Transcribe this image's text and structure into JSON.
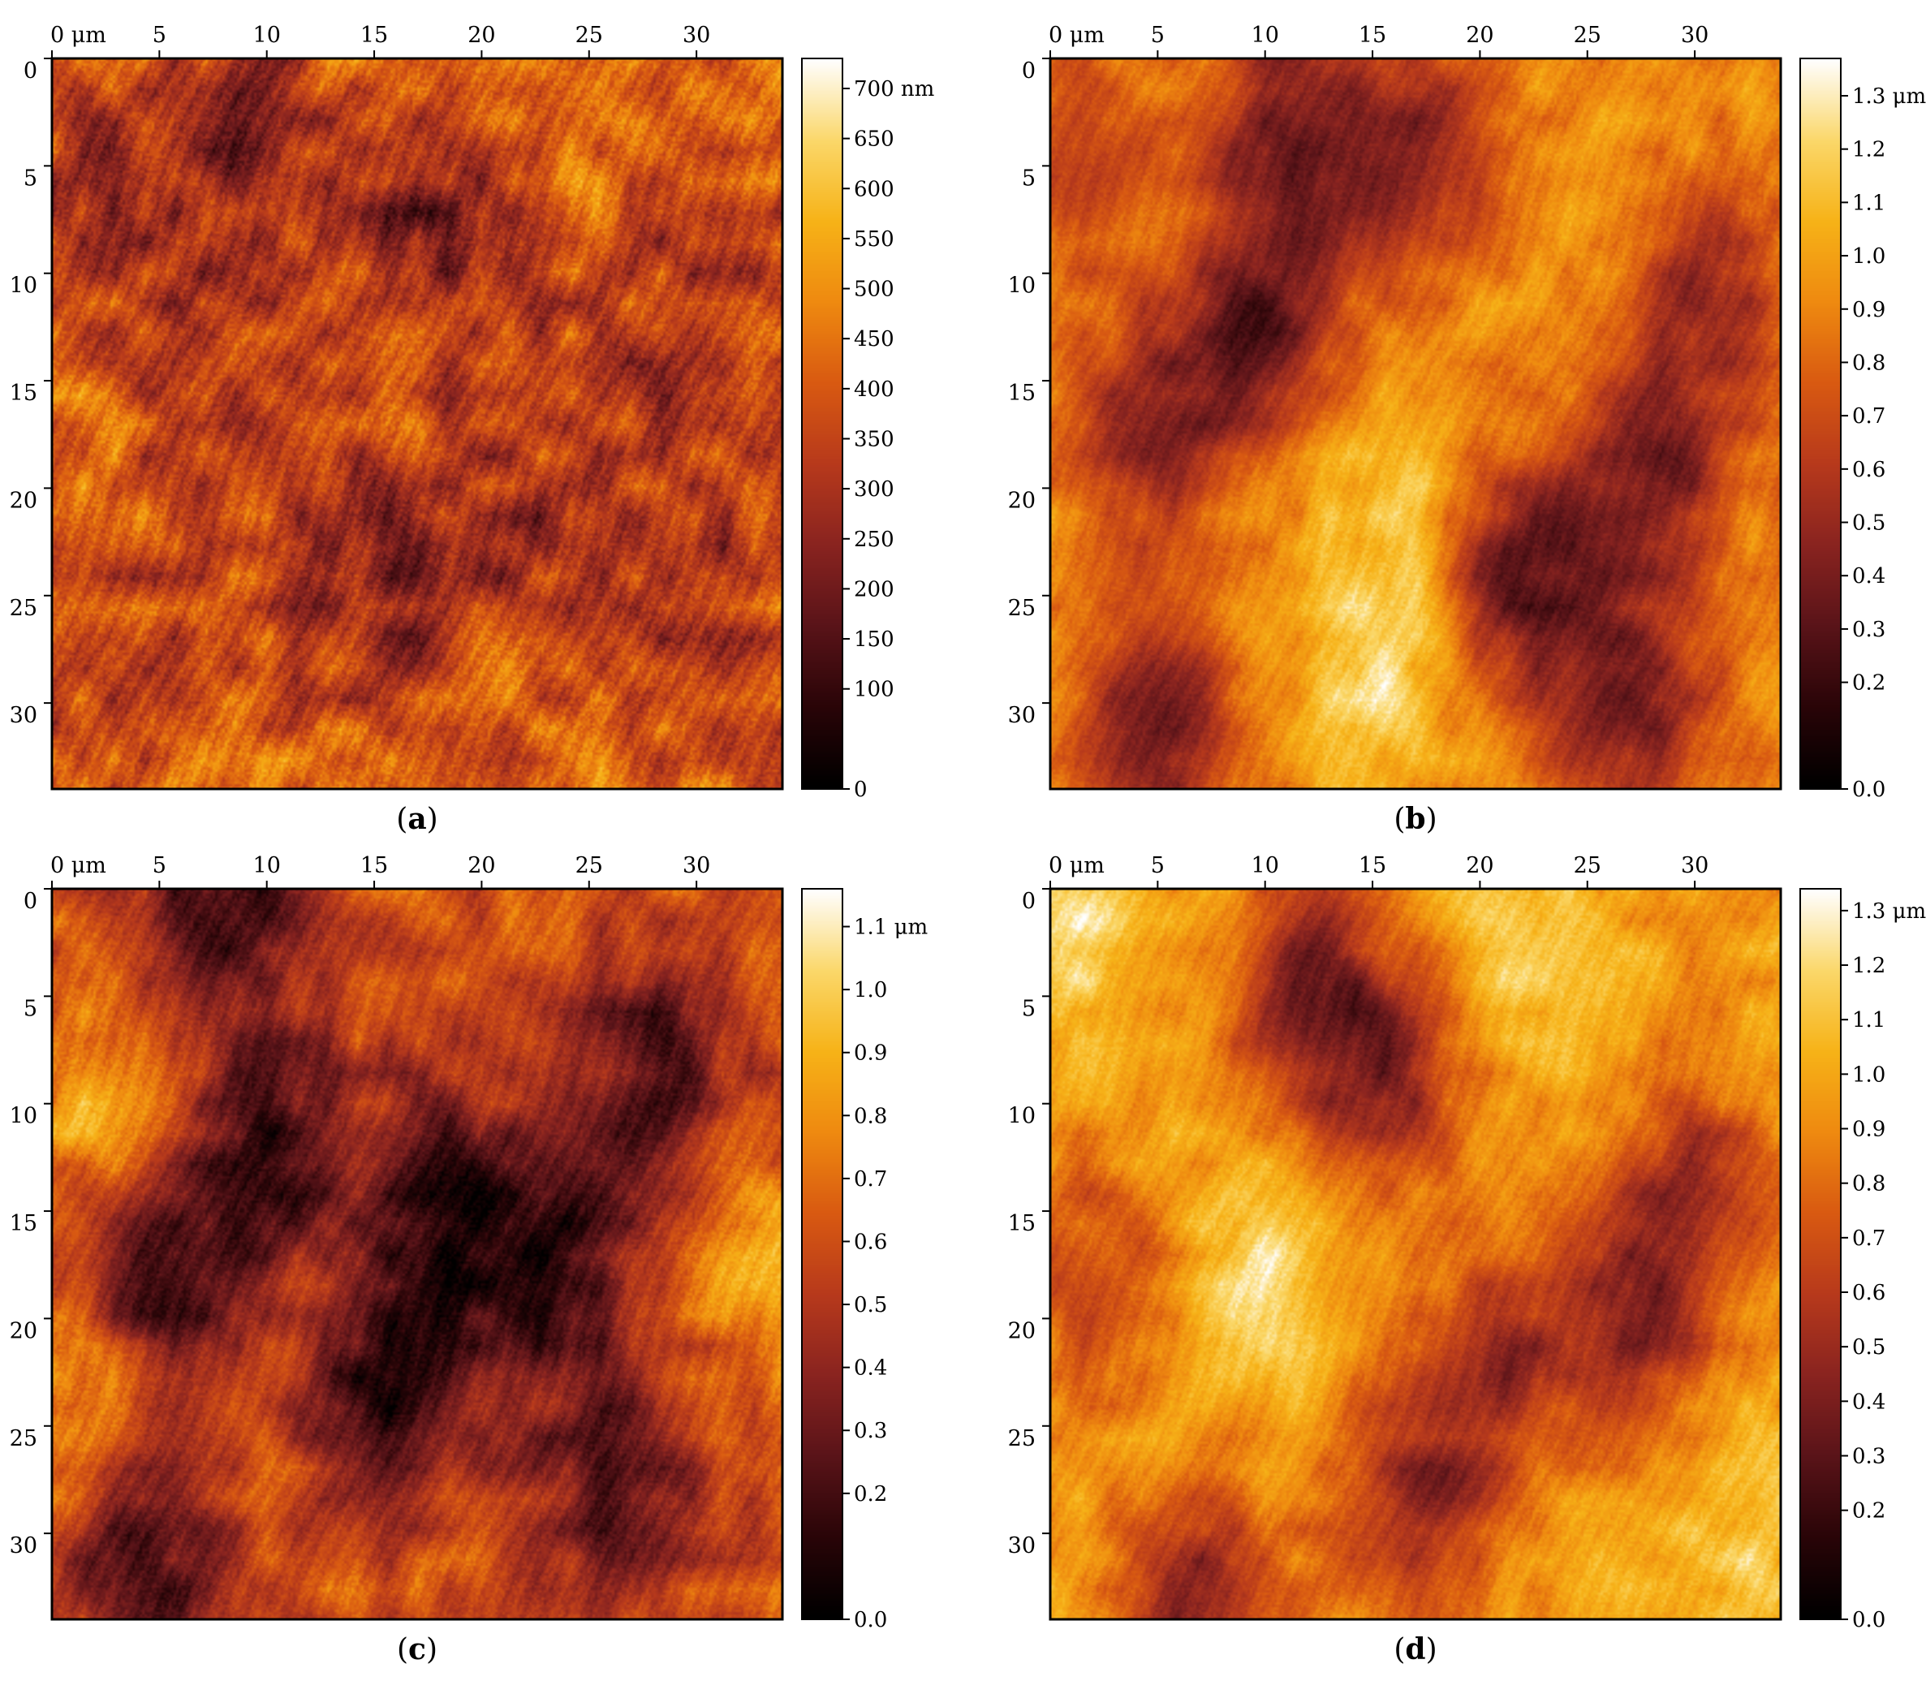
{
  "colors": {
    "colormap": [
      "#000000",
      "#2a0508",
      "#5a1419",
      "#8a2420",
      "#b83a1c",
      "#d95a12",
      "#ef8a10",
      "#f7b318",
      "#fbd86a",
      "#ffffff"
    ],
    "frame": "#000000"
  },
  "panels": [
    {
      "id": "a",
      "caption": {
        "open": "(",
        "letter": "a",
        "close": ")"
      },
      "x_axis": {
        "ticks": [
          "0 μm",
          "5",
          "10",
          "15",
          "20",
          "25",
          "30"
        ],
        "values": [
          0,
          5,
          10,
          15,
          20,
          25,
          30
        ],
        "range": [
          0,
          34
        ]
      },
      "y_axis": {
        "ticks": [
          "0",
          "5",
          "10",
          "15",
          "20",
          "25",
          "30"
        ],
        "values": [
          0,
          5,
          10,
          15,
          20,
          25,
          30
        ],
        "range": [
          0,
          34
        ]
      },
      "colorbar": {
        "labels": [
          "700 nm",
          "650",
          "600",
          "550",
          "500",
          "450",
          "400",
          "350",
          "300",
          "250",
          "200",
          "150",
          "100",
          "0"
        ],
        "values": [
          700,
          650,
          600,
          550,
          500,
          450,
          400,
          350,
          300,
          250,
          200,
          150,
          100,
          0
        ],
        "range": [
          0,
          730
        ]
      },
      "texture": {
        "base_level": 0.58,
        "variation": 0.22,
        "seed": 7,
        "spots": [
          {
            "x": 3,
            "y": 6,
            "d": -1
          },
          {
            "x": 9,
            "y": 4,
            "d": -1
          },
          {
            "x": 17,
            "y": 7,
            "d": -1
          },
          {
            "x": 13,
            "y": 21,
            "d": -0.8
          },
          {
            "x": 22,
            "y": 22,
            "d": -0.8
          },
          {
            "x": 16,
            "y": 26,
            "d": -1
          },
          {
            "x": 30,
            "y": 25,
            "d": -1
          },
          {
            "x": 28,
            "y": 15,
            "d": -0.7
          },
          {
            "x": 7,
            "y": 14,
            "d": -0.7
          },
          {
            "x": 4,
            "y": 28,
            "d": -0.6
          },
          {
            "x": 20,
            "y": 11,
            "d": -0.6
          },
          {
            "x": 31,
            "y": 8,
            "d": -0.6
          }
        ]
      }
    },
    {
      "id": "b",
      "caption": {
        "open": "(",
        "letter": "b",
        "close": ")"
      },
      "x_axis": {
        "ticks": [
          "0 μm",
          "5",
          "10",
          "15",
          "20",
          "25",
          "30"
        ],
        "values": [
          0,
          5,
          10,
          15,
          20,
          25,
          30
        ],
        "range": [
          0,
          34
        ]
      },
      "y_axis": {
        "ticks": [
          "0",
          "5",
          "10",
          "15",
          "20",
          "25",
          "30"
        ],
        "values": [
          0,
          5,
          10,
          15,
          20,
          25,
          30
        ],
        "range": [
          0,
          34
        ]
      },
      "colorbar": {
        "labels": [
          "1.3 μm",
          "1.2",
          "1.1",
          "1.0",
          "0.9",
          "0.8",
          "0.7",
          "0.6",
          "0.5",
          "0.4",
          "0.3",
          "0.2",
          "0.0"
        ],
        "values": [
          1.3,
          1.2,
          1.1,
          1.0,
          0.9,
          0.8,
          0.7,
          0.6,
          0.5,
          0.4,
          0.3,
          0.2,
          0.0
        ],
        "range": [
          0,
          1.37
        ]
      },
      "texture": {
        "base_level": 0.68,
        "variation": 0.12,
        "seed": 19,
        "spots": [
          {
            "x": 11,
            "y": 3,
            "d": -3.2
          },
          {
            "x": 17,
            "y": 4,
            "d": -2.8
          },
          {
            "x": 10,
            "y": 12,
            "d": -3.4
          },
          {
            "x": 5,
            "y": 17,
            "d": -3.0
          },
          {
            "x": 22,
            "y": 24,
            "d": -3.6
          },
          {
            "x": 28,
            "y": 19,
            "d": -3.2
          },
          {
            "x": 27,
            "y": 30,
            "d": -3.2
          },
          {
            "x": 5,
            "y": 31,
            "d": -3.4
          },
          {
            "x": 31,
            "y": 11,
            "d": -2.6
          },
          {
            "x": 15,
            "y": 28,
            "d": 1.8
          },
          {
            "x": 16,
            "y": 20,
            "d": 1.2
          },
          {
            "x": 1,
            "y": 5,
            "d": -2.0
          }
        ]
      }
    },
    {
      "id": "c",
      "caption": {
        "open": "(",
        "letter": "c",
        "close": ")"
      },
      "x_axis": {
        "ticks": [
          "0 μm",
          "5",
          "10",
          "15",
          "20",
          "25",
          "30"
        ],
        "values": [
          0,
          5,
          10,
          15,
          20,
          25,
          30
        ],
        "range": [
          0,
          34
        ]
      },
      "y_axis": {
        "ticks": [
          "0",
          "5",
          "10",
          "15",
          "20",
          "25",
          "30"
        ],
        "values": [
          0,
          5,
          10,
          15,
          20,
          25,
          30
        ],
        "range": [
          0,
          34
        ]
      },
      "colorbar": {
        "labels": [
          "1.1 μm",
          "1.0",
          "0.9",
          "0.8",
          "0.7",
          "0.6",
          "0.5",
          "0.4",
          "0.3",
          "0.2",
          "0.0"
        ],
        "values": [
          1.1,
          1.0,
          0.9,
          0.8,
          0.7,
          0.6,
          0.5,
          0.4,
          0.3,
          0.2,
          0.0
        ],
        "range": [
          0,
          1.16
        ]
      },
      "texture": {
        "base_level": 0.52,
        "variation": 0.16,
        "seed": 31,
        "spots": [
          {
            "x": 5,
            "y": 18,
            "d": -2.4
          },
          {
            "x": 10,
            "y": 12,
            "d": -2.2
          },
          {
            "x": 16,
            "y": 23,
            "d": -2.8
          },
          {
            "x": 23,
            "y": 17,
            "d": -2.6
          },
          {
            "x": 18,
            "y": 14,
            "d": -2.2
          },
          {
            "x": 4,
            "y": 31,
            "d": -2.4
          },
          {
            "x": 28,
            "y": 8,
            "d": -2.0
          },
          {
            "x": 8,
            "y": 1,
            "d": -2.4
          },
          {
            "x": 26,
            "y": 27,
            "d": -2.0
          },
          {
            "x": 2,
            "y": 10,
            "d": 1.4
          },
          {
            "x": 2,
            "y": 25,
            "d": 1.4
          },
          {
            "x": 33,
            "y": 18,
            "d": 1.2
          }
        ]
      }
    },
    {
      "id": "d",
      "caption": {
        "open": "(",
        "letter": "d",
        "close": ")"
      },
      "x_axis": {
        "ticks": [
          "0 μm",
          "5",
          "10",
          "15",
          "20",
          "25",
          "30"
        ],
        "values": [
          0,
          5,
          10,
          15,
          20,
          25,
          30
        ],
        "range": [
          0,
          34
        ]
      },
      "y_axis": {
        "ticks": [
          "0",
          "5",
          "10",
          "15",
          "20",
          "25",
          "30"
        ],
        "values": [
          0,
          5,
          10,
          15,
          20,
          25,
          30
        ],
        "range": [
          0,
          34
        ]
      },
      "colorbar": {
        "labels": [
          "1.3 μm",
          "1.2",
          "1.1",
          "1.0",
          "0.9",
          "0.8",
          "0.7",
          "0.6",
          "0.5",
          "0.4",
          "0.3",
          "0.2",
          "0.0"
        ],
        "values": [
          1.3,
          1.2,
          1.1,
          1.0,
          0.9,
          0.8,
          0.7,
          0.6,
          0.5,
          0.4,
          0.3,
          0.2,
          0.0
        ],
        "range": [
          0,
          1.34
        ]
      },
      "texture": {
        "base_level": 0.72,
        "variation": 0.12,
        "seed": 43,
        "spots": [
          {
            "x": 12,
            "y": 5,
            "d": -3.8
          },
          {
            "x": 16,
            "y": 9,
            "d": -2.6
          },
          {
            "x": 27,
            "y": 20,
            "d": -3.0
          },
          {
            "x": 30,
            "y": 14,
            "d": -2.6
          },
          {
            "x": 17,
            "y": 28,
            "d": -3.0
          },
          {
            "x": 7,
            "y": 33,
            "d": -3.4
          },
          {
            "x": 21,
            "y": 22,
            "d": -2.6
          },
          {
            "x": 2,
            "y": 18,
            "d": -2.0
          },
          {
            "x": 1,
            "y": 1,
            "d": 1.8
          },
          {
            "x": 10,
            "y": 18,
            "d": 1.6
          },
          {
            "x": 22,
            "y": 3,
            "d": 1.0
          },
          {
            "x": 32,
            "y": 31,
            "d": 1.0
          }
        ]
      }
    }
  ]
}
